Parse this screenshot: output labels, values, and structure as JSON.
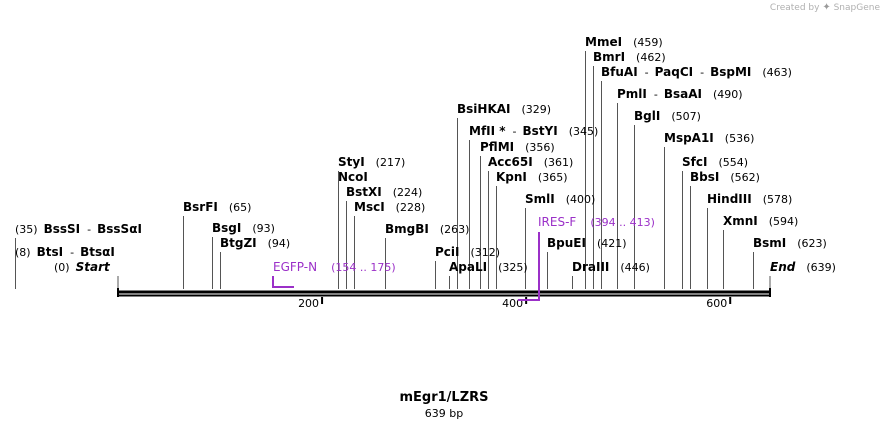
{
  "branding": {
    "created_by": "Created by",
    "app_name": "SnapGene"
  },
  "map": {
    "name": "mEgr1/LZRS",
    "length_label": "639 bp",
    "length_bp": 639,
    "backbone_color": "#000000",
    "feature_color": "#9b30c8",
    "ticks": [
      {
        "bp": 200,
        "label": "200"
      },
      {
        "bp": 400,
        "label": "400"
      },
      {
        "bp": 600,
        "label": "600"
      }
    ],
    "sites": [
      {
        "names": [
          "BssSI",
          "BssSαI"
        ],
        "pos": "(35)",
        "bp": 35,
        "pos_first": true,
        "italic": false
      },
      {
        "names": [
          "BtsI",
          "BtsαI"
        ],
        "pos": "(8)",
        "bp": 8,
        "pos_first": true,
        "italic": false
      },
      {
        "names": [
          "Start"
        ],
        "pos": "(0)",
        "bp": 0,
        "pos_first": true,
        "italic": true
      },
      {
        "names": [
          "BsrFI"
        ],
        "pos": "(65)",
        "bp": 65,
        "pos_first": false,
        "italic": false
      },
      {
        "names": [
          "BsgI"
        ],
        "pos": "(93)",
        "bp": 93,
        "pos_first": false,
        "italic": false
      },
      {
        "names": [
          "BtgZI"
        ],
        "pos": "(94)",
        "bp": 94,
        "pos_first": false,
        "italic": false
      },
      {
        "names": [
          "StyI"
        ],
        "pos": "(217)",
        "bp": 217,
        "pos_first": false,
        "italic": false
      },
      {
        "names": [
          "NcoI"
        ],
        "pos": "",
        "bp": 217,
        "pos_first": false,
        "italic": false
      },
      {
        "names": [
          "BstXI"
        ],
        "pos": "(224)",
        "bp": 224,
        "pos_first": false,
        "italic": false
      },
      {
        "names": [
          "MscI"
        ],
        "pos": "(228)",
        "bp": 228,
        "pos_first": false,
        "italic": false
      },
      {
        "names": [
          "BmgBI"
        ],
        "pos": "(263)",
        "bp": 263,
        "pos_first": false,
        "italic": false
      },
      {
        "names": [
          "PciI"
        ],
        "pos": "(312)",
        "bp": 312,
        "pos_first": false,
        "italic": false
      },
      {
        "names": [
          "ApaLI"
        ],
        "pos": "(325)",
        "bp": 325,
        "pos_first": false,
        "italic": false
      },
      {
        "names": [
          "BsiHKAI"
        ],
        "pos": "(329)",
        "bp": 329,
        "pos_first": false,
        "italic": false
      },
      {
        "names": [
          "MfII *",
          "BstYI"
        ],
        "pos": "(345)",
        "bp": 345,
        "pos_first": false,
        "italic": false
      },
      {
        "names": [
          "PflMI"
        ],
        "pos": "(356)",
        "bp": 356,
        "pos_first": false,
        "italic": false
      },
      {
        "names": [
          "Acc65I"
        ],
        "pos": "(361)",
        "bp": 361,
        "pos_first": false,
        "italic": false
      },
      {
        "names": [
          "KpnI"
        ],
        "pos": "(365)",
        "bp": 365,
        "pos_first": false,
        "italic": false
      },
      {
        "names": [
          "SmlI"
        ],
        "pos": "(400)",
        "bp": 400,
        "pos_first": false,
        "italic": false
      },
      {
        "names": [
          "BpuEI"
        ],
        "pos": "(421)",
        "bp": 421,
        "pos_first": false,
        "italic": false
      },
      {
        "names": [
          "DraIII"
        ],
        "pos": "(446)",
        "bp": 446,
        "pos_first": false,
        "italic": false
      },
      {
        "names": [
          "MmeI"
        ],
        "pos": "(459)",
        "bp": 459,
        "pos_first": false,
        "italic": false
      },
      {
        "names": [
          "BmrI"
        ],
        "pos": "(462)",
        "bp": 462,
        "pos_first": false,
        "italic": false
      },
      {
        "names": [
          "BfuAI",
          "PaqCI",
          "BspMI"
        ],
        "pos": "(463)",
        "bp": 463,
        "pos_first": false,
        "italic": false
      },
      {
        "names": [
          "PmlI",
          "BsaAI"
        ],
        "pos": "(490)",
        "bp": 490,
        "pos_first": false,
        "italic": false
      },
      {
        "names": [
          "BglI"
        ],
        "pos": "(507)",
        "bp": 507,
        "pos_first": false,
        "italic": false
      },
      {
        "names": [
          "MspA1I"
        ],
        "pos": "(536)",
        "bp": 536,
        "pos_first": false,
        "italic": false
      },
      {
        "names": [
          "SfcI"
        ],
        "pos": "(554)",
        "bp": 554,
        "pos_first": false,
        "italic": false
      },
      {
        "names": [
          "BbsI"
        ],
        "pos": "(562)",
        "bp": 562,
        "pos_first": false,
        "italic": false
      },
      {
        "names": [
          "HindIII"
        ],
        "pos": "(578)",
        "bp": 578,
        "pos_first": false,
        "italic": false
      },
      {
        "names": [
          "XmnI"
        ],
        "pos": "(594)",
        "bp": 594,
        "pos_first": false,
        "italic": false
      },
      {
        "names": [
          "BsmI"
        ],
        "pos": "(623)",
        "bp": 623,
        "pos_first": false,
        "italic": false
      },
      {
        "names": [
          "End"
        ],
        "pos": "(639)",
        "bp": 639,
        "pos_first": false,
        "italic": true
      }
    ],
    "features": [
      {
        "name": "EGFP-N",
        "range": "(154 .. 175)",
        "start_bp": 154,
        "end_bp": 175
      },
      {
        "name": "IRES-F",
        "range": "(394 .. 413)",
        "start_bp": 394,
        "end_bp": 413
      }
    ]
  }
}
